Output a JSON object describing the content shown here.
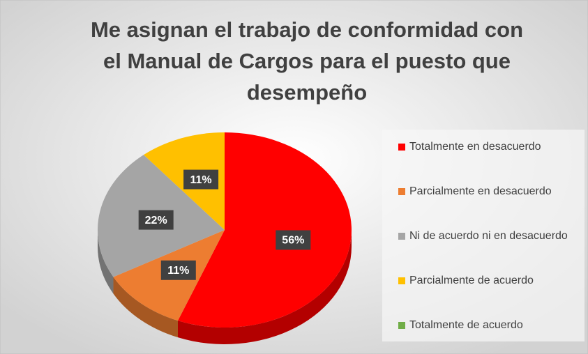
{
  "chart_data": {
    "type": "pie",
    "title": "Me asignan el trabajo de conformidad con el Manual de Cargos para el puesto que desempeño",
    "categories": [
      "Totalmente en desacuerdo",
      "Parcialmente en desacuerdo",
      "Ni de acuerdo ni en desacuerdo",
      "Parcialmente de acuerdo",
      "Totalmente de acuerdo"
    ],
    "values": [
      56,
      11,
      22,
      11,
      0
    ],
    "value_labels": [
      "56%",
      "11%",
      "22%",
      "11%",
      null
    ],
    "colors": [
      "#ff0000",
      "#ed7d31",
      "#a5a5a5",
      "#ffc000",
      "#70ad47"
    ],
    "legend": "right"
  }
}
